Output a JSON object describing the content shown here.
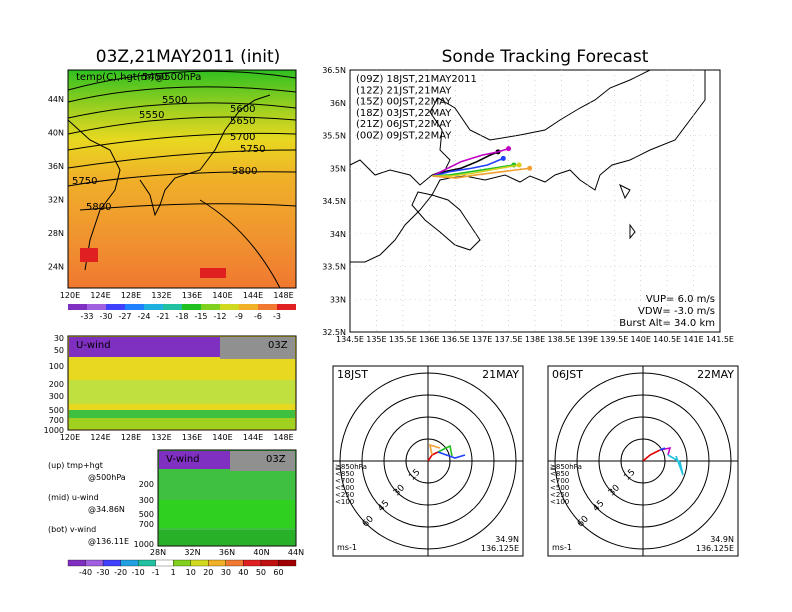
{
  "left_title": "03Z,21MAY2011 (init)",
  "right_title": "Sonde Tracking Forecast",
  "map500": {
    "label": "temp(C),hgt(m)@500hPa",
    "contours": [
      "5450",
      "5500",
      "5550",
      "5600",
      "5650",
      "5700",
      "5750",
      "5800",
      "5750",
      "5800"
    ],
    "lat_ticks": [
      "44N",
      "40N",
      "36N",
      "32N",
      "28N",
      "24N"
    ],
    "lon_ticks": [
      "120E",
      "124E",
      "128E",
      "132E",
      "136E",
      "140E",
      "144E",
      "148E"
    ],
    "colorbar": [
      "-33",
      "-30",
      "-27",
      "-24",
      "-21",
      "-18",
      "-15",
      "-12",
      "-9",
      "-6",
      "-3"
    ]
  },
  "uwind": {
    "label": "U-wind",
    "time": "03Z",
    "p_ticks": [
      "30",
      "50",
      "100",
      "200",
      "300",
      "500",
      "700",
      "1000"
    ],
    "lon_ticks": [
      "120E",
      "124E",
      "128E",
      "132E",
      "136E",
      "140E",
      "144E",
      "148E"
    ]
  },
  "vwind": {
    "label": "V-wind",
    "time": "03Z",
    "p_ticks": [
      "200",
      "300",
      "500",
      "700",
      "1000"
    ],
    "lat_ticks": [
      "28N",
      "32N",
      "36N",
      "40N",
      "44N"
    ],
    "colorbar": [
      "-40",
      "-30",
      "-20",
      "-10",
      "-1",
      "1",
      "10",
      "20",
      "30",
      "40",
      "50",
      "60"
    ]
  },
  "notes": {
    "up": "(up) tmp+hgt",
    "up2": "@500hPa",
    "mid": "(mid) u-wind",
    "mid2": "@34.86N",
    "bot": "(bot) v-wind",
    "bot2": "@136.11E"
  },
  "track_legend": [
    {
      "label": "(09Z)  18JST,21MAY2011",
      "color": "#000000"
    },
    {
      "label": "(12Z)  21JST,21MAY",
      "color": "#c000c0"
    },
    {
      "label": "(15Z)  00JST,22MAY",
      "color": "#2040ff"
    },
    {
      "label": "(18Z)  03JST,22MAY",
      "color": "#20c020"
    },
    {
      "label": "(21Z)  06JST,22MAY",
      "color": "#d8d020"
    },
    {
      "label": "(00Z)  09JST,22MAY",
      "color": "#f0a030"
    }
  ],
  "track_axes": {
    "lat_ticks": [
      "36.5N",
      "36N",
      "35.5N",
      "35N",
      "34.5N",
      "34N",
      "33.5N",
      "33N",
      "32.5N"
    ],
    "lon_ticks": [
      "134.5E",
      "135E",
      "135.5E",
      "136E",
      "136.5E",
      "137E",
      "137.5E",
      "138E",
      "138.5E",
      "139E",
      "139.5E",
      "140E",
      "140.5E",
      "141E",
      "141.5E"
    ]
  },
  "track_params": {
    "vup": "VUP=  6.0  m/s",
    "vdw": "VDW= -3.0  m/s",
    "burst": "Burst Alt= 34.0  km"
  },
  "polar1": {
    "left": "18JST",
    "right": "21MAY",
    "unit": "ms-1",
    "lat": "34.9N",
    "lon": "136.125E"
  },
  "polar2": {
    "left": "06JST",
    "right": "22MAY",
    "unit": "ms-1",
    "lat": "34.9N",
    "lon": "136.125E"
  },
  "polar_rings": [
    "15",
    "30",
    "45",
    "60"
  ],
  "polar_levels": [
    {
      "label": "≧850hPa",
      "color": "#e00000"
    },
    {
      "label": "<850",
      "color": "#f0a030"
    },
    {
      "label": "<700",
      "color": "#d8d020"
    },
    {
      "label": "<500",
      "color": "#20c020"
    },
    {
      "label": "<250",
      "color": "#20c0e0"
    },
    {
      "label": "<100",
      "color": "#2040ff"
    }
  ],
  "chart_data": {
    "type": "line",
    "title": "Sonde Tracking Forecast",
    "series": [
      {
        "name": "(09Z) 18JST,21MAY2011",
        "color": "#000000",
        "x": [
          136.06,
          136.3,
          136.6,
          136.9,
          137.15,
          137.3
        ],
        "y": [
          34.88,
          34.95,
          35.0,
          35.1,
          35.2,
          35.25
        ]
      },
      {
        "name": "(12Z) 21JST,21MAY",
        "color": "#c000c0",
        "x": [
          136.06,
          136.3,
          136.6,
          137.0,
          137.3,
          137.5
        ],
        "y": [
          34.88,
          34.98,
          35.1,
          35.2,
          35.25,
          35.3
        ]
      },
      {
        "name": "(15Z) 00JST,22MAY",
        "color": "#2040ff",
        "x": [
          136.06,
          136.4,
          136.8,
          137.1,
          137.4
        ],
        "y": [
          34.88,
          34.95,
          35.0,
          35.05,
          35.15
        ]
      },
      {
        "name": "(18Z) 03JST,22MAY",
        "color": "#20c020",
        "x": [
          136.06,
          136.4,
          136.8,
          137.2,
          137.6
        ],
        "y": [
          34.88,
          34.9,
          34.95,
          35.0,
          35.05
        ]
      },
      {
        "name": "(21Z) 06JST,22MAY",
        "color": "#d8d020",
        "x": [
          136.06,
          136.4,
          136.8,
          137.2,
          137.7
        ],
        "y": [
          34.88,
          34.88,
          34.92,
          34.98,
          35.05
        ]
      },
      {
        "name": "(00Z) 09JST,22MAY",
        "color": "#f0a030",
        "x": [
          136.06,
          136.5,
          136.9,
          137.4,
          137.9
        ],
        "y": [
          34.88,
          34.85,
          34.9,
          34.95,
          35.0
        ]
      }
    ],
    "xlim": [
      134.5,
      141.5
    ],
    "ylim": [
      32.5,
      36.5
    ],
    "grid": true
  }
}
